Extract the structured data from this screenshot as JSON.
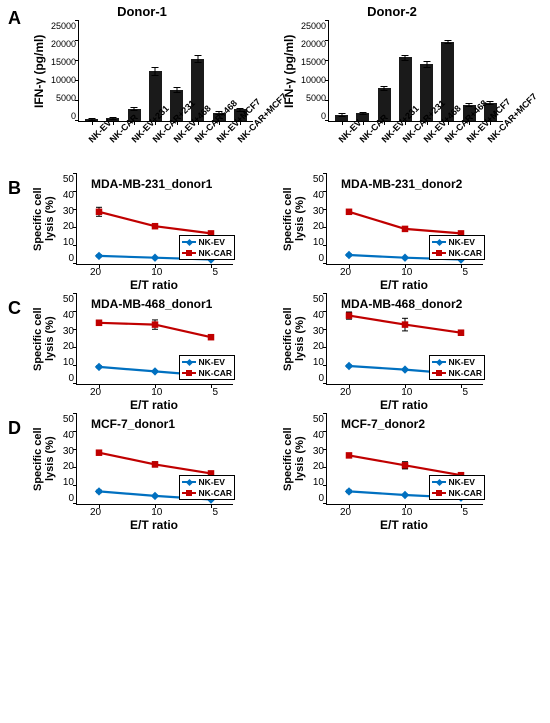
{
  "colors": {
    "bar": "#1a1a1a",
    "ev": "#0070c0",
    "car": "#c00000",
    "axis": "#000000",
    "bg": "#ffffff"
  },
  "panelLabels": {
    "A": "A",
    "B": "B",
    "C": "C",
    "D": "D"
  },
  "barCharts": {
    "ylabel": "IFN-γ (pg/ml)",
    "ymax": 25000,
    "yticks": [
      0,
      5000,
      10000,
      15000,
      20000,
      25000
    ],
    "categories": [
      "NK-EV",
      "NK-CAR",
      "NK-EV+231",
      "NK-CAR+231",
      "NK-EV+468",
      "NK-CAR+468",
      "NK-EV+MCF7",
      "NK-CAR+MCF7"
    ],
    "donor1": {
      "title": "Donor-1",
      "values": [
        600,
        700,
        3100,
        12500,
        7800,
        15600,
        2100,
        2900
      ],
      "err": [
        250,
        250,
        450,
        900,
        650,
        800,
        400,
        350
      ]
    },
    "donor2": {
      "title": "Donor-2",
      "values": [
        1600,
        2000,
        8200,
        15900,
        14200,
        19800,
        4100,
        4600
      ],
      "err": [
        300,
        300,
        550,
        550,
        700,
        400,
        400,
        350
      ]
    }
  },
  "lineCharts": {
    "ylabel": "Specific cell lysis (%)",
    "xlabel": "E/T ratio",
    "ymax": 50,
    "yticks": [
      0,
      10,
      20,
      30,
      40,
      50
    ],
    "xcats": [
      "20",
      "10",
      "5"
    ],
    "legend": {
      "ev": "NK-EV",
      "car": "NK-CAR"
    },
    "B": {
      "d1": {
        "title": "MDA-MB-231_donor1",
        "ev": {
          "y": [
            4.5,
            3.5,
            2.5
          ],
          "e": [
            0.6,
            0.4,
            0.4
          ]
        },
        "car": {
          "y": [
            29,
            21,
            17
          ],
          "e": [
            2.5,
            1.0,
            1.0
          ]
        }
      },
      "d2": {
        "title": "MDA-MB-231_donor2",
        "ev": {
          "y": [
            5,
            3.5,
            2.5
          ],
          "e": [
            0.6,
            0.4,
            0.4
          ]
        },
        "car": {
          "y": [
            29,
            19.5,
            17
          ],
          "e": [
            0.5,
            1.3,
            0.5
          ]
        }
      }
    },
    "C": {
      "d1": {
        "title": "MDA-MB-468_donor1",
        "ev": {
          "y": [
            9.5,
            7,
            4.5
          ],
          "e": [
            0.6,
            0.4,
            0.4
          ]
        },
        "car": {
          "y": [
            34,
            33,
            26
          ],
          "e": [
            1.5,
            2.6,
            1.2
          ]
        }
      },
      "d2": {
        "title": "MDA-MB-468_donor2",
        "ev": {
          "y": [
            10,
            8,
            5.5
          ],
          "e": [
            0.6,
            0.4,
            0.4
          ]
        },
        "car": {
          "y": [
            38,
            33,
            28.5
          ],
          "e": [
            2.0,
            3.5,
            1.5
          ]
        }
      }
    },
    "D": {
      "d1": {
        "title": "MCF-7_donor1",
        "ev": {
          "y": [
            7,
            4.5,
            2.5
          ],
          "e": [
            0.7,
            0.5,
            0.4
          ]
        },
        "car": {
          "y": [
            28.5,
            22,
            17
          ],
          "e": [
            1.2,
            1.5,
            0.7
          ]
        }
      },
      "d2": {
        "title": "MCF-7_donor2",
        "ev": {
          "y": [
            7,
            5,
            3.5
          ],
          "e": [
            0.7,
            0.5,
            0.4
          ]
        },
        "car": {
          "y": [
            27,
            21.5,
            16
          ],
          "e": [
            0.8,
            2.0,
            0.7
          ]
        }
      }
    }
  }
}
